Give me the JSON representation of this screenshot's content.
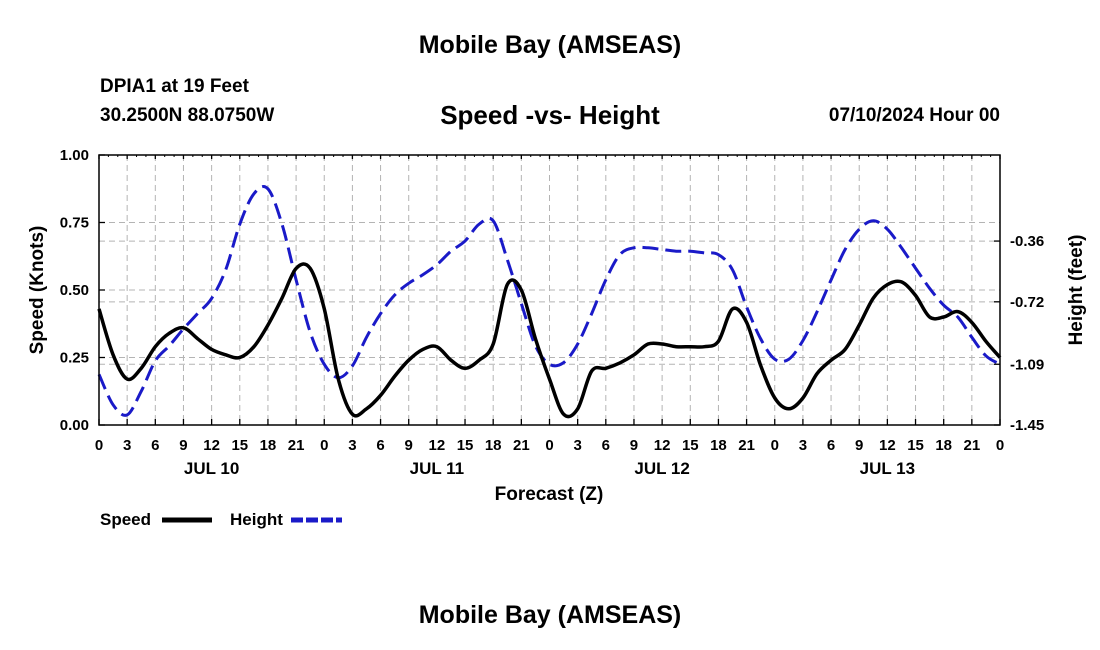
{
  "page": {
    "title": "Mobile Bay (AMSEAS)",
    "title_repeat": "Mobile Bay (AMSEAS)",
    "station": "DPIA1 at 19 Feet",
    "coordinates": "30.2500N  88.0750W",
    "datetime": "07/10/2024 Hour 00"
  },
  "colors": {
    "speed": "#000000",
    "height": "#1a1ac8",
    "grid": "#b4b4b4"
  },
  "chart_data": {
    "type": "line",
    "title": "Speed -vs- Height",
    "xlabel": "Forecast (Z)",
    "ylabel": "Speed (Knots)",
    "y2label": "Height (feet)",
    "xlim": [
      0,
      96
    ],
    "ylim": [
      0,
      1
    ],
    "y2lim": [
      -1.45,
      0.15
    ],
    "x_tick_labels": [
      "0",
      "3",
      "6",
      "9",
      "12",
      "15",
      "18",
      "21",
      "0",
      "3",
      "6",
      "9",
      "12",
      "15",
      "18",
      "21",
      "0",
      "3",
      "6",
      "9",
      "12",
      "15",
      "18",
      "21",
      "0",
      "3",
      "6",
      "9",
      "12",
      "15",
      "18",
      "21",
      "0"
    ],
    "day_labels": [
      {
        "x": 12,
        "label": "JUL 10"
      },
      {
        "x": 36,
        "label": "JUL 11"
      },
      {
        "x": 60,
        "label": "JUL 12"
      },
      {
        "x": 84,
        "label": "JUL 13"
      }
    ],
    "y_ticks": [
      0,
      0.25,
      0.5,
      0.75,
      1.0
    ],
    "y_tick_labels": [
      "0.00",
      "0.25",
      "0.50",
      "0.75",
      "1.00"
    ],
    "y2_ticks": [
      -0.36,
      -0.72,
      -1.09,
      -1.45
    ],
    "y2_tick_labels": [
      "-0.36",
      "-0.72",
      "-1.09",
      "-1.45"
    ],
    "legend": [
      {
        "name": "Speed",
        "style": "solid"
      },
      {
        "name": "Height",
        "style": "dashed"
      }
    ],
    "series": [
      {
        "name": "Speed",
        "axis": "left",
        "x": [
          0,
          1.5,
          3,
          4.5,
          6,
          7.5,
          9,
          10.5,
          12,
          13.5,
          15,
          16.5,
          18,
          19.5,
          21,
          22.5,
          24,
          25.5,
          27,
          28.5,
          30,
          31.5,
          33,
          34.5,
          36,
          37.5,
          39,
          40.5,
          42,
          43.5,
          45,
          46.5,
          48,
          49.5,
          51,
          52.5,
          54,
          55.5,
          57,
          58.5,
          60,
          61.5,
          63,
          64.5,
          66,
          67.5,
          69,
          70.5,
          72,
          73.5,
          75,
          76.5,
          78,
          79.5,
          81,
          82.5,
          84,
          85.5,
          87,
          88.5,
          90,
          91.5,
          93,
          94.5,
          96
        ],
        "values": [
          0.43,
          0.26,
          0.17,
          0.21,
          0.29,
          0.34,
          0.36,
          0.32,
          0.28,
          0.26,
          0.25,
          0.29,
          0.37,
          0.47,
          0.58,
          0.58,
          0.43,
          0.17,
          0.04,
          0.06,
          0.11,
          0.18,
          0.24,
          0.28,
          0.29,
          0.24,
          0.21,
          0.24,
          0.3,
          0.52,
          0.5,
          0.32,
          0.17,
          0.04,
          0.06,
          0.2,
          0.21,
          0.23,
          0.26,
          0.3,
          0.3,
          0.29,
          0.29,
          0.29,
          0.31,
          0.43,
          0.38,
          0.22,
          0.1,
          0.06,
          0.1,
          0.19,
          0.24,
          0.28,
          0.37,
          0.47,
          0.52,
          0.53,
          0.48,
          0.4,
          0.4,
          0.42,
          0.38,
          0.31,
          0.25
        ]
      },
      {
        "name": "Height",
        "axis": "right",
        "x": [
          0,
          1.5,
          3,
          4.5,
          6,
          7.5,
          9,
          10.5,
          12,
          13.5,
          15,
          16.5,
          18,
          19.5,
          21,
          22.5,
          24,
          25.5,
          27,
          28.5,
          30,
          31.5,
          33,
          34.5,
          36,
          37.5,
          39,
          40.5,
          42,
          43.5,
          45,
          46.5,
          48,
          49.5,
          51,
          52.5,
          54,
          55.5,
          57,
          58.5,
          60,
          61.5,
          63,
          64.5,
          66,
          67.5,
          69,
          70.5,
          72,
          73.5,
          75,
          76.5,
          78,
          79.5,
          81,
          82.5,
          84,
          85.5,
          87,
          88.5,
          90,
          91.5,
          93,
          94.5,
          96
        ],
        "values": [
          -1.15,
          -1.33,
          -1.39,
          -1.25,
          -1.07,
          -0.98,
          -0.88,
          -0.79,
          -0.7,
          -0.53,
          -0.26,
          -0.08,
          -0.05,
          -0.26,
          -0.59,
          -0.9,
          -1.09,
          -1.17,
          -1.1,
          -0.93,
          -0.79,
          -0.68,
          -0.61,
          -0.56,
          -0.5,
          -0.42,
          -0.36,
          -0.26,
          -0.24,
          -0.47,
          -0.73,
          -0.98,
          -1.09,
          -1.08,
          -0.97,
          -0.79,
          -0.59,
          -0.44,
          -0.4,
          -0.4,
          -0.41,
          -0.42,
          -0.42,
          -0.43,
          -0.44,
          -0.53,
          -0.75,
          -0.94,
          -1.06,
          -1.06,
          -0.95,
          -0.78,
          -0.59,
          -0.41,
          -0.29,
          -0.24,
          -0.29,
          -0.4,
          -0.52,
          -0.64,
          -0.74,
          -0.81,
          -0.93,
          -1.04,
          -1.09
        ]
      }
    ]
  }
}
